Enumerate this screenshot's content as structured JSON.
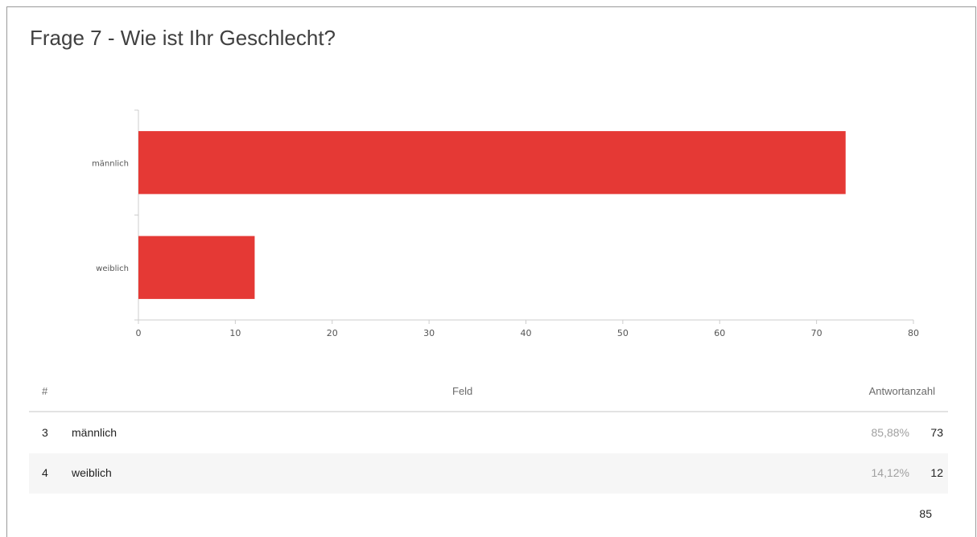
{
  "question": {
    "title": "Frage 7 - Wie ist Ihr Geschlecht?"
  },
  "chart_data": {
    "type": "bar",
    "orientation": "horizontal",
    "categories": [
      "männlich",
      "weiblich"
    ],
    "values": [
      73,
      12
    ],
    "xlim": [
      0,
      80
    ],
    "xticks": [
      0,
      10,
      20,
      30,
      40,
      50,
      60,
      70,
      80
    ],
    "bar_color": "#e53935",
    "grid": false
  },
  "table": {
    "headers": {
      "num": "#",
      "field": "Feld",
      "count": "Antwortanzahl"
    },
    "rows": [
      {
        "num": "3",
        "label": "männlich",
        "percent": "85,88%",
        "count": "73"
      },
      {
        "num": "4",
        "label": "weiblich",
        "percent": "14,12%",
        "count": "12"
      }
    ],
    "total": "85"
  }
}
